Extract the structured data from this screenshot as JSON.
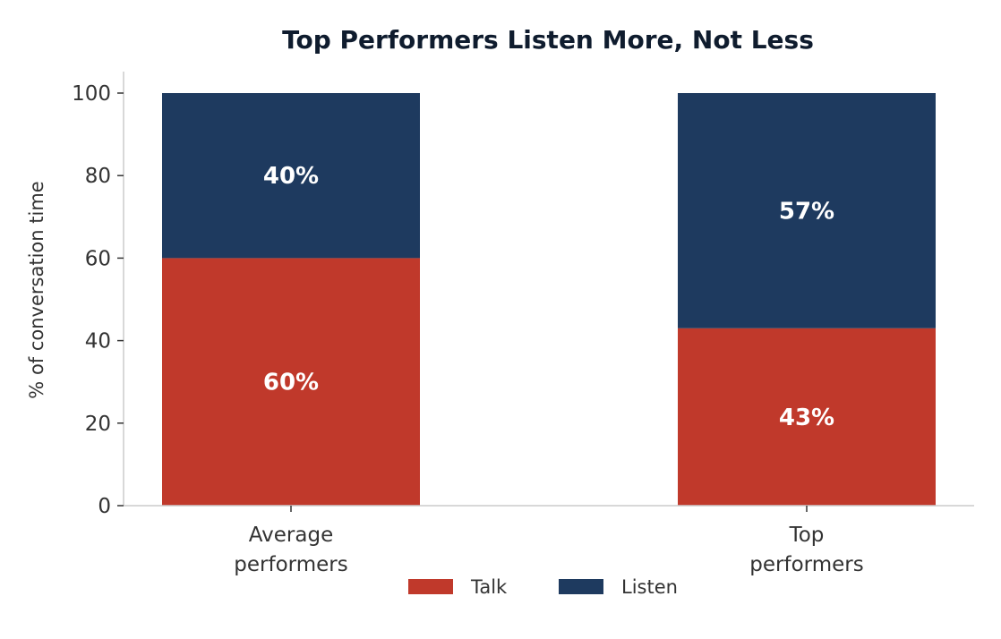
{
  "chart_data": {
    "type": "bar",
    "stacked": true,
    "title": "Top Performers Listen More, Not Less",
    "xlabel": "",
    "ylabel": "% of conversation time",
    "ylim": [
      0,
      105
    ],
    "yticks": [
      0,
      20,
      40,
      60,
      80,
      100
    ],
    "categories": [
      "Average performers",
      "Top performers"
    ],
    "category_lines": [
      [
        "Average",
        "performers"
      ],
      [
        "Top",
        "performers"
      ]
    ],
    "series": [
      {
        "name": "Talk",
        "values": [
          60,
          43
        ],
        "labels": [
          "60%",
          "43%"
        ],
        "color": "#c0392b"
      },
      {
        "name": "Listen",
        "values": [
          40,
          57
        ],
        "labels": [
          "40%",
          "57%"
        ],
        "color": "#1e3a5f"
      }
    ],
    "legend": {
      "position": "bottom-center",
      "entries": [
        "Talk",
        "Listen"
      ]
    },
    "grid": false,
    "axis_color": "#cccccc"
  }
}
